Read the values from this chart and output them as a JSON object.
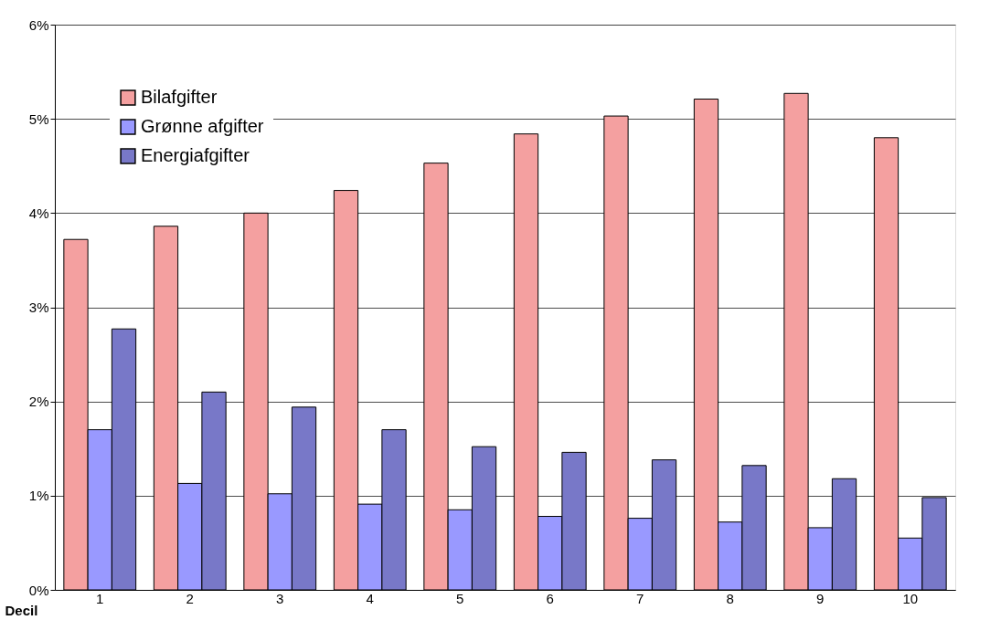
{
  "chart_data": {
    "type": "bar",
    "xlabel": "Decil",
    "categories": [
      "1",
      "2",
      "3",
      "4",
      "5",
      "6",
      "7",
      "8",
      "9",
      "10"
    ],
    "series": [
      {
        "name": "Bilafgifter",
        "color": "#f4a0a0",
        "values": [
          3.72,
          3.86,
          4.0,
          4.24,
          4.53,
          4.84,
          5.03,
          5.21,
          5.27,
          4.8
        ]
      },
      {
        "name": "Grønne afgifter",
        "color": "#9999ff",
        "values": [
          1.7,
          1.13,
          1.02,
          0.91,
          0.85,
          0.78,
          0.76,
          0.72,
          0.66,
          0.55
        ]
      },
      {
        "name": "Energiafgifter",
        "color": "#7878c8",
        "values": [
          2.77,
          2.1,
          1.94,
          1.7,
          1.52,
          1.46,
          1.38,
          1.32,
          1.18,
          0.98
        ]
      }
    ],
    "ylim": [
      0,
      6
    ],
    "yticks": [
      {
        "value": 0,
        "label": "0%"
      },
      {
        "value": 1,
        "label": "1%"
      },
      {
        "value": 2,
        "label": "2%"
      },
      {
        "value": 3,
        "label": "3%"
      },
      {
        "value": 4,
        "label": "4%"
      },
      {
        "value": 5,
        "label": "5%"
      },
      {
        "value": 6,
        "label": "6%"
      }
    ],
    "grid": "y",
    "legend": "top left"
  }
}
